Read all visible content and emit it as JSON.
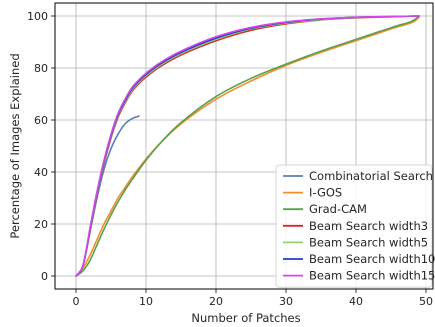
{
  "chart_data": {
    "type": "line",
    "title": "",
    "xlabel": "Number of Patches",
    "ylabel": "Percentage of Images Explained",
    "xlim": [
      -3,
      51
    ],
    "ylim": [
      -5,
      105
    ],
    "xticks": [
      0,
      10,
      20,
      30,
      40,
      50
    ],
    "yticks": [
      0,
      20,
      40,
      60,
      80,
      100
    ],
    "grid": true,
    "legend_position": "bottom-right",
    "series": [
      {
        "name": "Combinatorial Search",
        "color": "#5b7fb5",
        "x": [
          0,
          1,
          2,
          3,
          4,
          5,
          6,
          7,
          8,
          9
        ],
        "y": [
          0,
          4,
          17,
          30,
          41,
          49,
          54.5,
          58.5,
          60.5,
          61.5
        ]
      },
      {
        "name": "I-GOS",
        "color": "#f28e2b",
        "x": [
          0,
          1,
          2,
          3,
          4,
          5,
          6,
          7,
          8,
          10,
          12,
          15,
          20,
          25,
          30,
          35,
          40,
          45,
          48,
          49
        ],
        "y": [
          0,
          3,
          8,
          14,
          20,
          25,
          30,
          34,
          38,
          45,
          51,
          58.5,
          68,
          75,
          81,
          86,
          90.5,
          95,
          97.5,
          99.5
        ]
      },
      {
        "name": "Grad-CAM",
        "color": "#59a14f",
        "x": [
          0,
          1,
          2,
          3,
          4,
          5,
          6,
          7,
          8,
          10,
          12,
          15,
          20,
          25,
          30,
          35,
          40,
          45,
          48,
          49
        ],
        "y": [
          0,
          2,
          6,
          12,
          18,
          23.5,
          28.5,
          33,
          37,
          44.5,
          51,
          59,
          69,
          76,
          81.5,
          86.5,
          91,
          95.5,
          98,
          100
        ]
      },
      {
        "name": "Beam Search width3",
        "color": "#d62728",
        "x": [
          0,
          1,
          2,
          3,
          4,
          5,
          6,
          7,
          8,
          9,
          10,
          12,
          15,
          20,
          25,
          30,
          35,
          40,
          45,
          49
        ],
        "y": [
          0,
          4,
          17,
          31,
          43,
          53,
          61,
          66.5,
          71,
          74,
          76.5,
          80.5,
          85,
          90.5,
          94.5,
          97,
          98.5,
          99.3,
          99.7,
          100
        ]
      },
      {
        "name": "Beam Search width5",
        "color": "#8fd16f",
        "x": [
          0,
          1,
          2,
          3,
          4,
          5,
          6,
          7,
          8,
          9,
          10,
          12,
          15,
          20,
          25,
          30,
          35,
          40,
          45,
          49
        ],
        "y": [
          0,
          4,
          17.5,
          31.5,
          43.5,
          53.5,
          61.5,
          67,
          71.5,
          74.5,
          77,
          81,
          85.5,
          91,
          95,
          97.3,
          98.6,
          99.4,
          99.7,
          100
        ]
      },
      {
        "name": "Beam Search width10",
        "color": "#1f3fd0",
        "x": [
          0,
          1,
          2,
          3,
          4,
          5,
          6,
          7,
          8,
          9,
          10,
          12,
          15,
          20,
          25,
          30,
          35,
          40,
          45,
          49
        ],
        "y": [
          0,
          4,
          18,
          32,
          44,
          54,
          62,
          67.5,
          72,
          75,
          77.5,
          81.5,
          86,
          91.5,
          95.3,
          97.5,
          98.8,
          99.5,
          99.8,
          100
        ]
      },
      {
        "name": "Beam Search width15",
        "color": "#d447e8",
        "x": [
          0,
          1,
          2,
          3,
          4,
          5,
          6,
          7,
          8,
          9,
          10,
          12,
          15,
          20,
          25,
          30,
          35,
          40,
          45,
          49
        ],
        "y": [
          0,
          4,
          18.5,
          32.5,
          44.5,
          54.5,
          62.5,
          68,
          72.5,
          75.5,
          78,
          82,
          86.5,
          92,
          95.6,
          97.7,
          98.9,
          99.5,
          99.8,
          100
        ]
      }
    ]
  }
}
